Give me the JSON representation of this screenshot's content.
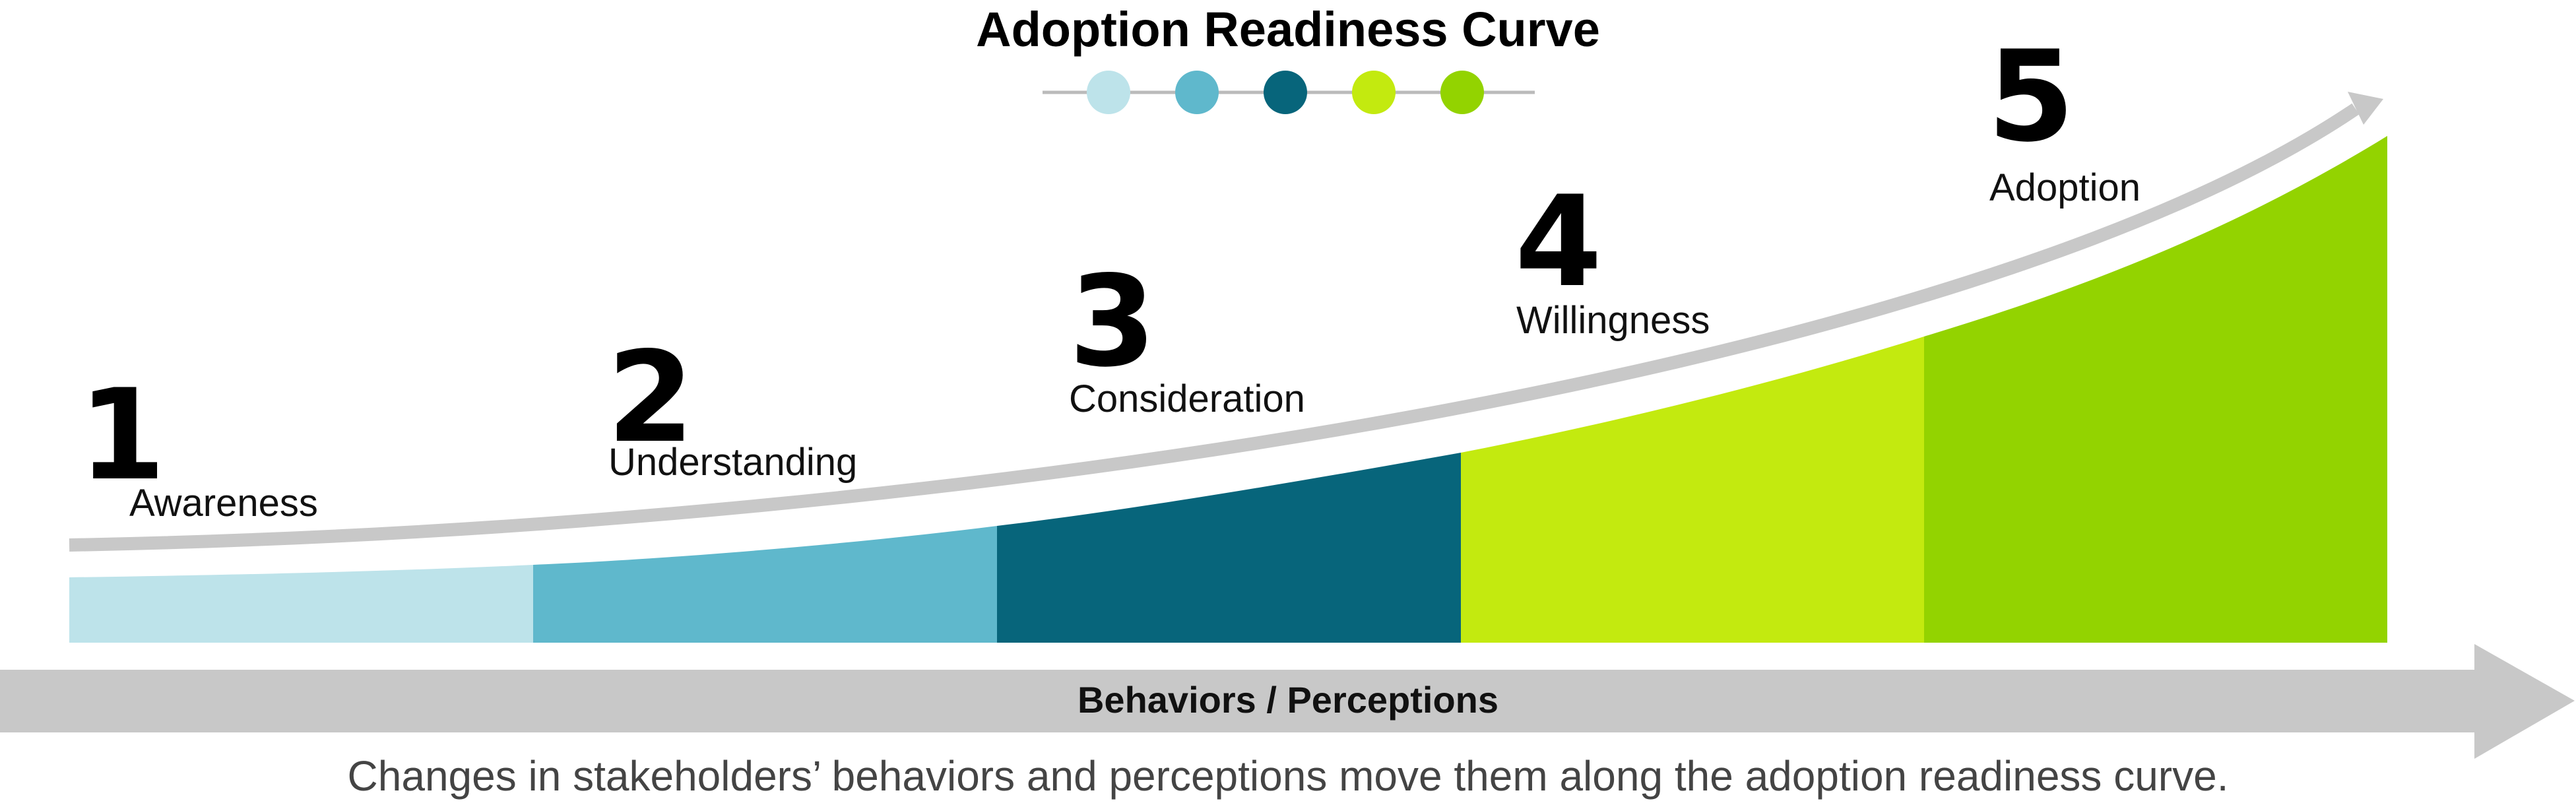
{
  "title": "Adoption Readiness Curve",
  "axis_label": "Behaviors / Perceptions",
  "caption": "Changes in stakeholders’ behaviors and perceptions move them along the adoption readiness curve.",
  "colors": {
    "arrow_gray": "#c8c8c8",
    "legend_line": "#bbbbbb"
  },
  "stages": [
    {
      "number": "1",
      "label": "Awareness",
      "color": "#bde3ea"
    },
    {
      "number": "2",
      "label": "Understanding",
      "color": "#5fb8cc"
    },
    {
      "number": "3",
      "label": "Consideration",
      "color": "#07657b"
    },
    {
      "number": "4",
      "label": "Willingness",
      "color": "#c3ea0f"
    },
    {
      "number": "5",
      "label": "Adoption",
      "color": "#93d300"
    }
  ]
}
